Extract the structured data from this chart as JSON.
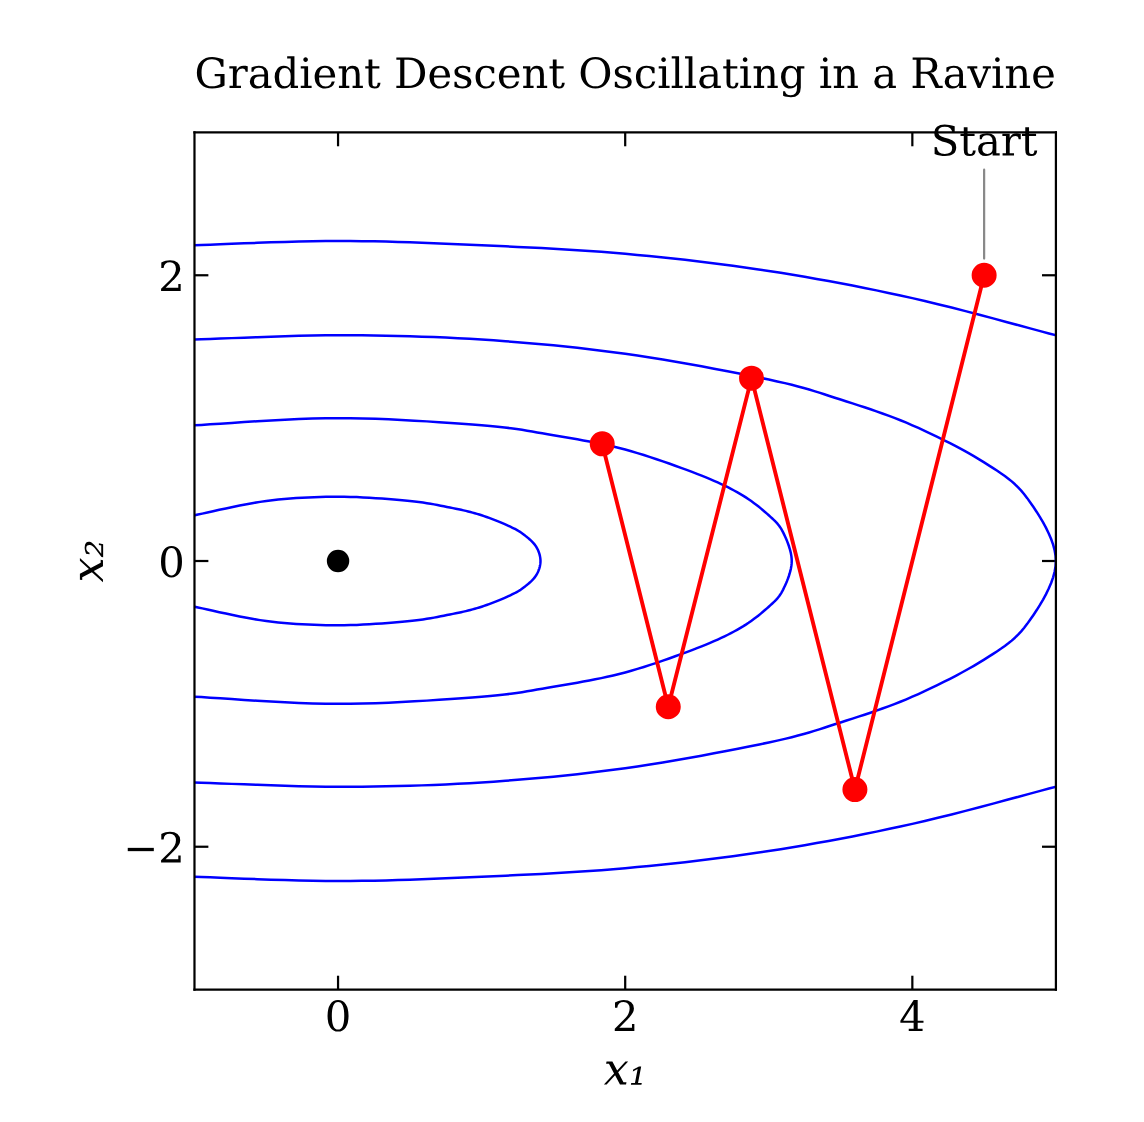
{
  "chart_data": {
    "type": "line",
    "title": "Gradient Descent Oscillating in a Ravine",
    "xlabel": "x₁",
    "ylabel": "x₂",
    "xlim": [
      -1,
      5
    ],
    "ylim": [
      -3,
      3
    ],
    "xticks": [
      0,
      2,
      4
    ],
    "yticks": [
      {
        "value": -2,
        "label": "−2"
      },
      0,
      2
    ],
    "series": [
      {
        "color": "#0000ff",
        "marker": "none",
        "x": [
          -1,
          -0.5,
          0,
          0.5,
          0.8,
          1,
          1.2,
          1.3,
          1.38,
          1.41,
          1.38,
          1.3,
          1.2,
          1,
          0.8,
          0.5,
          0,
          -0.5,
          -1
        ],
        "values": [
          0.32,
          0.42,
          0.45,
          0.42,
          0.37,
          0.32,
          0.24,
          0.18,
          0.1,
          0,
          -0.1,
          -0.18,
          -0.24,
          -0.32,
          -0.37,
          -0.42,
          -0.45,
          -0.42,
          -0.32
        ]
      },
      {
        "color": "#0000ff",
        "marker": "none",
        "x": [
          -1,
          0,
          1,
          1.5,
          2,
          2.5,
          2.8,
          3,
          3.1,
          3.16,
          3.1,
          3,
          2.8,
          2.5,
          2,
          1.5,
          1,
          0,
          -1
        ],
        "values": [
          0.95,
          1,
          0.95,
          0.88,
          0.78,
          0.61,
          0.47,
          0.32,
          0.2,
          0,
          -0.2,
          -0.32,
          -0.47,
          -0.61,
          -0.78,
          -0.88,
          -0.95,
          -1,
          -0.95
        ]
      },
      {
        "color": "#0000ff",
        "marker": "none",
        "x": [
          -1,
          0,
          1,
          2,
          3,
          3.5,
          4,
          4.5,
          4.8,
          5,
          4.8,
          4.5,
          4,
          3.5,
          3,
          2,
          1,
          0,
          -1
        ],
        "values": [
          1.55,
          1.58,
          1.55,
          1.45,
          1.27,
          1.13,
          0.95,
          0.69,
          0.44,
          0,
          -0.44,
          -0.69,
          -0.95,
          -1.13,
          -1.27,
          -1.45,
          -1.55,
          -1.58,
          -1.55
        ]
      },
      {
        "color": "#0000ff",
        "marker": "none",
        "x": [
          -1,
          0,
          1,
          2,
          3,
          4,
          5
        ],
        "values": [
          2.21,
          2.24,
          2.21,
          2.15,
          2.03,
          1.84,
          1.58
        ]
      },
      {
        "color": "#0000ff",
        "marker": "none",
        "x": [
          -1,
          0,
          1,
          2,
          3,
          4,
          5
        ],
        "values": [
          -2.21,
          -2.24,
          -2.21,
          -2.15,
          -2.03,
          -1.84,
          -1.58
        ]
      },
      {
        "color": "#ff0000",
        "marker": "circle",
        "x": [
          4.5,
          3.6,
          2.88,
          2.3,
          1.84
        ],
        "values": [
          2,
          -1.6,
          1.28,
          -1.02,
          0.82
        ]
      },
      {
        "type": "scatter",
        "color": "#000000",
        "marker": "circle",
        "x": [
          0
        ],
        "values": [
          0
        ]
      }
    ],
    "annotations": [
      {
        "text": "Start",
        "x": 4.5,
        "y": 2
      }
    ]
  }
}
